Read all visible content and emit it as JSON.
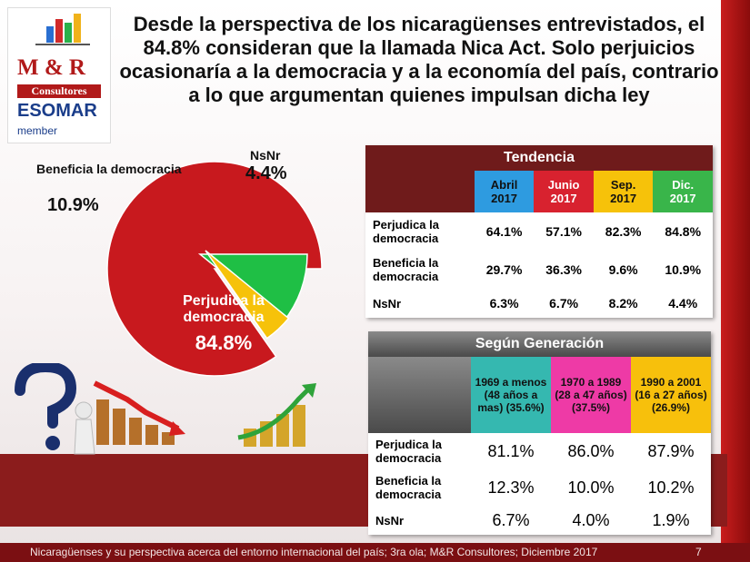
{
  "title": "Desde la perspectiva de los nicaragüenses entrevistados, el 84.8% consideran que la llamada Nica Act. Solo perjuicios ocasionaría a la democracia y a la economía del país, contrario a lo que argumentan quienes impulsan dicha ley",
  "logo": {
    "line1": "M & R",
    "line2": "Consultores",
    "line3": "ESOMAR",
    "line4": "member"
  },
  "chart_data": [
    {
      "type": "pie",
      "slices": [
        {
          "label": "Perjudica la democracia",
          "value": 84.8,
          "display": "84.8%",
          "color": "#c8191e"
        },
        {
          "label": "Beneficia la democracia",
          "value": 10.9,
          "display": "10.9%",
          "color": "#1fbf45"
        },
        {
          "label": "NsNr",
          "value": 4.4,
          "display": "4.4%",
          "color": "#f6c20a"
        }
      ]
    },
    {
      "type": "table",
      "title": "Tendencia",
      "columns": [
        {
          "label": "Abril\n2017",
          "color": "#2e9be0"
        },
        {
          "label": "Junio\n2017",
          "color": "#d8222f"
        },
        {
          "label": "Sep.\n2017",
          "color": "#f6c20a"
        },
        {
          "label": "Dic.\n2017",
          "color": "#39b54a"
        }
      ],
      "rows": [
        {
          "label": "Perjudica la democracia",
          "values": [
            "64.1%",
            "57.1%",
            "82.3%",
            "84.8%"
          ]
        },
        {
          "label": "Beneficia la democracia",
          "values": [
            "29.7%",
            "36.3%",
            "9.6%",
            "10.9%"
          ]
        },
        {
          "label": "NsNr",
          "values": [
            "6.3%",
            "6.7%",
            "8.2%",
            "4.4%"
          ]
        }
      ]
    },
    {
      "type": "table",
      "title": "Según Generación",
      "columns": [
        {
          "label": "1969 a menos (48 años a mas) (35.6%)",
          "color": "#35b8b0"
        },
        {
          "label": "1970 a 1989 (28 a 47 años) (37.5%)",
          "color": "#ee3aa6"
        },
        {
          "label": "1990 a 2001 (16 a 27 años) (26.9%)",
          "color": "#f7c00c"
        }
      ],
      "rows": [
        {
          "label": "Perjudica la democracia",
          "values": [
            "81.1%",
            "86.0%",
            "87.9%"
          ]
        },
        {
          "label": "Beneficia la democracia",
          "values": [
            "12.3%",
            "10.0%",
            "10.2%"
          ]
        },
        {
          "label": "NsNr",
          "values": [
            "6.7%",
            "4.0%",
            "1.9%"
          ]
        }
      ]
    }
  ],
  "footer": {
    "text": "Nicaragüenses y su perspectiva acerca del entorno internacional del país; 3ra ola; M&R Consultores; Diciembre 2017",
    "page": "7"
  }
}
